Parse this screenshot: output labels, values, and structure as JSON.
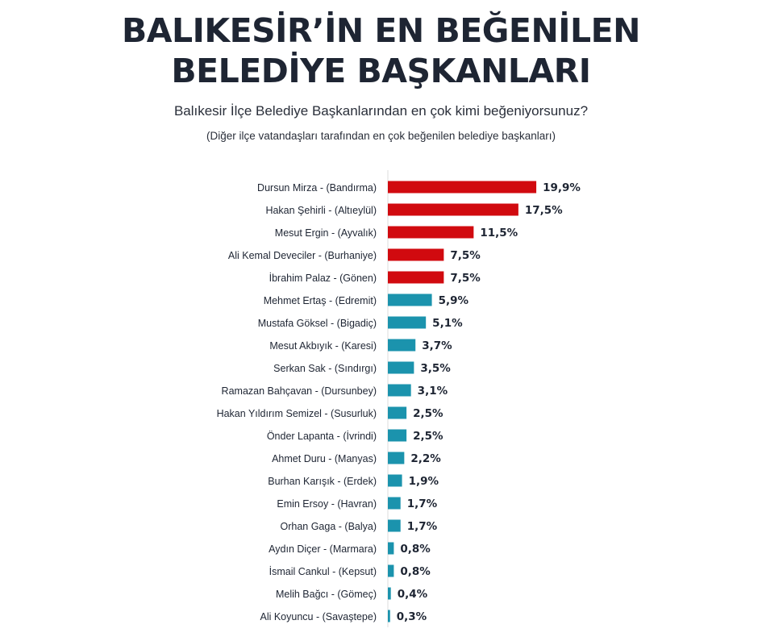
{
  "header": {
    "title_line1": "BALIKESİR’İN EN BEĞENİLEN",
    "title_line2": "BELEDİYE BAŞKANLARI",
    "subtitle": "Balıkesir İlçe Belediye Başkanlarından en çok kimi beğeniyorsunuz?",
    "note": "(Diğer ilçe vatandaşları tarafından en çok beğenilen belediye başkanları)"
  },
  "colors": {
    "top5": "#d10a0f",
    "others": "#1b93ad",
    "axis": "#dcdcdc",
    "text": "#1e2533"
  },
  "chart_data": {
    "type": "bar",
    "orientation": "horizontal",
    "grid": false,
    "legend": "none",
    "categories": [
      "Dursun Mirza - (Bandırma)",
      "Hakan Şehirli - (Altıeylül)",
      "Mesut Ergin - (Ayvalık)",
      "Ali Kemal Deveciler - (Burhaniye)",
      "İbrahim Palaz - (Gönen)",
      "Mehmet Ertaş - (Edremit)",
      "Mustafa Göksel - (Bigadiç)",
      "Mesut Akbıyık - (Karesi)",
      "Serkan Sak - (Sındırgı)",
      "Ramazan Bahçavan - (Dursunbey)",
      "Hakan Yıldırım Semizel - (Susurluk)",
      "Önder Lapanta - (İvrindi)",
      "Ahmet Duru - (Manyas)",
      "Burhan Karışık - (Erdek)",
      "Emin Ersoy - (Havran)",
      "Orhan Gaga - (Balya)",
      "Aydın Diçer - (Marmara)",
      "İsmail Cankul - (Kepsut)",
      "Melih Bağcı - (Gömeç)",
      "Ali Koyuncu - (Savaştepe)"
    ],
    "values": [
      19.9,
      17.5,
      11.5,
      7.5,
      7.5,
      5.9,
      5.1,
      3.7,
      3.5,
      3.1,
      2.5,
      2.5,
      2.2,
      1.9,
      1.7,
      1.7,
      0.8,
      0.8,
      0.4,
      0.3
    ],
    "value_labels": [
      "19,9%",
      "17,5%",
      "11,5%",
      "7,5%",
      "7,5%",
      "5,9%",
      "5,1%",
      "3,7%",
      "3,5%",
      "3,1%",
      "2,5%",
      "2,5%",
      "2,2%",
      "1,9%",
      "1,7%",
      "1,7%",
      "0,8%",
      "0,8%",
      "0,4%",
      "0,3%"
    ],
    "highlighted_count": 5,
    "xlim": [
      0,
      20
    ]
  }
}
